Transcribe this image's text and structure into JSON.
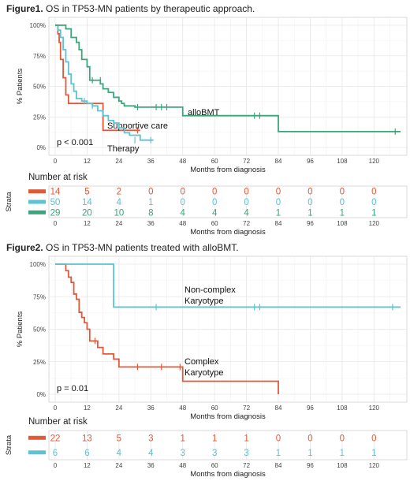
{
  "chart_data": [
    {
      "type": "line",
      "figure_label": "Figure1.",
      "title": "OS in TP53-MN patients by therapeutic approach.",
      "xlabel": "Months from diagnosis",
      "ylabel": "% Patients",
      "xlim": [
        0,
        130
      ],
      "ylim": [
        0,
        1
      ],
      "xticks": [
        0,
        12,
        24,
        36,
        48,
        60,
        72,
        84,
        96,
        108,
        120
      ],
      "yticks": [
        0,
        0.25,
        0.5,
        0.75,
        1.0
      ],
      "ytick_labels": [
        "0%",
        "25%",
        "50%",
        "75%",
        "100%"
      ],
      "grid": true,
      "annotation": "p < 0.001",
      "series": [
        {
          "name": "Supportive care",
          "color": "#e05a3a",
          "x": [
            0,
            1,
            1.5,
            2,
            3,
            4,
            5,
            8,
            12,
            18,
            32
          ],
          "y": [
            1.0,
            0.93,
            0.86,
            0.72,
            0.57,
            0.43,
            0.36,
            0.36,
            0.36,
            0.14,
            0.14
          ],
          "censor_x": [
            31
          ],
          "censor_y": [
            0.14
          ]
        },
        {
          "name": "Therapy",
          "color": "#5bc3d3",
          "x": [
            0,
            1,
            2,
            3,
            4,
            5,
            6,
            7,
            8,
            10,
            12,
            14,
            16,
            18,
            20,
            22,
            24,
            26,
            28,
            32,
            37
          ],
          "y": [
            1.0,
            0.96,
            0.9,
            0.8,
            0.7,
            0.6,
            0.52,
            0.46,
            0.4,
            0.38,
            0.36,
            0.34,
            0.3,
            0.26,
            0.22,
            0.2,
            0.16,
            0.12,
            0.1,
            0.06,
            0.06
          ],
          "censor_x": [
            11,
            14,
            30,
            36
          ],
          "censor_y": [
            0.38,
            0.34,
            0.06,
            0.06
          ]
        },
        {
          "name": "alloBMT",
          "color": "#3aa67c",
          "x": [
            0,
            4,
            6,
            8,
            9,
            10,
            12,
            13,
            15,
            17,
            18,
            20,
            22,
            24,
            25,
            26,
            27,
            28,
            30,
            48,
            84,
            130
          ],
          "y": [
            1.0,
            0.97,
            0.9,
            0.86,
            0.8,
            0.72,
            0.66,
            0.55,
            0.55,
            0.52,
            0.48,
            0.45,
            0.41,
            0.38,
            0.36,
            0.34,
            0.34,
            0.34,
            0.33,
            0.26,
            0.13,
            0.13
          ],
          "censor_x": [
            14,
            17,
            31,
            38,
            40,
            42,
            75,
            77,
            128
          ],
          "censor_y": [
            0.55,
            0.55,
            0.33,
            0.33,
            0.33,
            0.33,
            0.26,
            0.26,
            0.13
          ]
        }
      ],
      "risk_table": {
        "title": "Number at risk",
        "strata_label": "Strata",
        "xlabel": "Months from diagnosis",
        "times": [
          0,
          12,
          24,
          36,
          48,
          60,
          72,
          84,
          96,
          108,
          120
        ],
        "rows": [
          {
            "color": "#e05a3a",
            "counts": [
              "14",
              "5",
              "2",
              "0",
              "0",
              "0",
              "0",
              "0",
              "0",
              "0",
              "0"
            ]
          },
          {
            "color": "#5bc3d3",
            "counts": [
              "50",
              "14",
              "4",
              "1",
              "0",
              "0",
              "0",
              "0",
              "0",
              "0",
              "0"
            ]
          },
          {
            "color": "#3aa67c",
            "counts": [
              "29",
              "20",
              "10",
              "8",
              "4",
              "4",
              "4",
              "1",
              "1",
              "1",
              "1"
            ]
          }
        ]
      }
    },
    {
      "type": "line",
      "figure_label": "Figure2.",
      "title": "OS in TP53-MN patients treated with alloBMT.",
      "xlabel": "Months from diagnosis",
      "ylabel": "% Patients",
      "xlim": [
        0,
        130
      ],
      "ylim": [
        0,
        1
      ],
      "xticks": [
        0,
        12,
        24,
        36,
        48,
        60,
        72,
        84,
        96,
        108,
        120
      ],
      "yticks": [
        0,
        0.25,
        0.5,
        0.75,
        1.0
      ],
      "ytick_labels": [
        "0%",
        "25%",
        "50%",
        "75%",
        "100%"
      ],
      "grid": true,
      "annotation": "p = 0.01",
      "series": [
        {
          "name": "Complex Karyotype",
          "name_lines": [
            "Complex",
            "Karyotype"
          ],
          "color": "#e05a3a",
          "x": [
            0,
            4,
            5,
            6,
            7,
            8,
            9,
            10,
            11,
            12,
            13,
            14,
            16,
            18,
            22,
            24,
            30,
            48,
            84
          ],
          "y": [
            1.0,
            0.95,
            0.9,
            0.86,
            0.77,
            0.73,
            0.63,
            0.59,
            0.55,
            0.5,
            0.41,
            0.41,
            0.36,
            0.31,
            0.27,
            0.21,
            0.21,
            0.1,
            0.0
          ],
          "censor_x": [
            15,
            31,
            40,
            47
          ],
          "censor_y": [
            0.41,
            0.21,
            0.21,
            0.21
          ]
        },
        {
          "name": "Non-complex Karyotype",
          "name_lines": [
            "Non-complex",
            "Karyotype"
          ],
          "color": "#5bc3d3",
          "x": [
            0,
            22,
            130
          ],
          "y": [
            1.0,
            0.67,
            0.67
          ],
          "censor_x": [
            38,
            75,
            77,
            127
          ],
          "censor_y": [
            0.67,
            0.67,
            0.67,
            0.67
          ]
        }
      ],
      "risk_table": {
        "title": "Number at risk",
        "strata_label": "Strata",
        "xlabel": "Months from diagnosis",
        "times": [
          0,
          12,
          24,
          36,
          48,
          60,
          72,
          84,
          96,
          108,
          120
        ],
        "rows": [
          {
            "color": "#e05a3a",
            "counts": [
              "22",
              "13",
              "5",
              "3",
              "1",
              "1",
              "1",
              "0",
              "0",
              "0",
              "0"
            ]
          },
          {
            "color": "#5bc3d3",
            "counts": [
              "6",
              "6",
              "4",
              "4",
              "3",
              "3",
              "3",
              "1",
              "1",
              "1",
              "1"
            ]
          }
        ]
      }
    }
  ]
}
